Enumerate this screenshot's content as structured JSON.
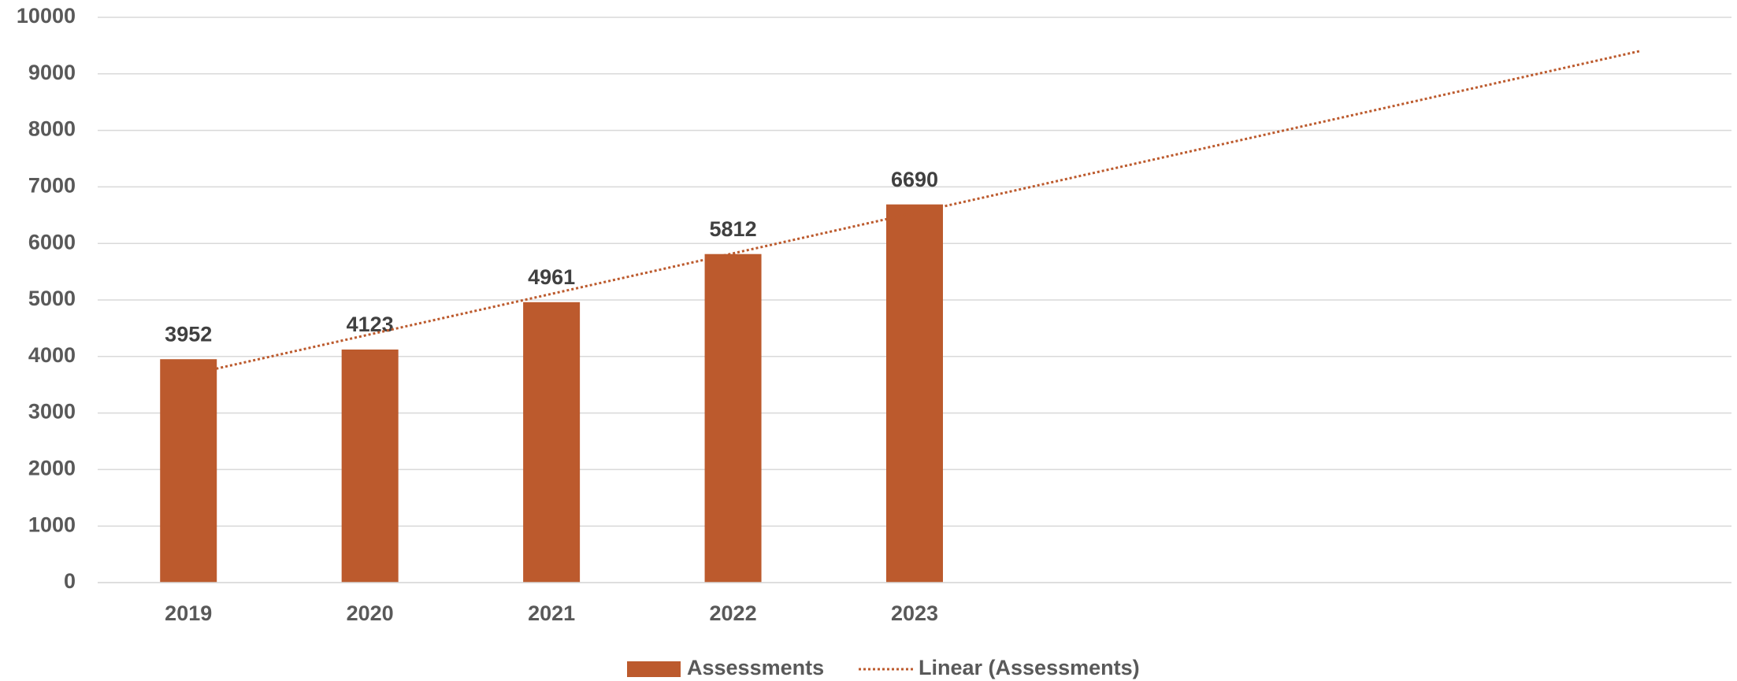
{
  "chart_data": {
    "type": "bar",
    "categories": [
      "2019",
      "2020",
      "2021",
      "2022",
      "2023",
      null,
      null,
      null,
      null
    ],
    "series": [
      {
        "name": "Assessments",
        "color": "#bc5a2d",
        "values": [
          3952,
          4123,
          4961,
          5812,
          6690,
          null,
          null,
          null,
          null
        ]
      }
    ],
    "trendline": {
      "name": "Linear (Assessments)",
      "type": "linear",
      "color": "#bc5a2d",
      "dotted": true
    },
    "ylim": [
      0,
      10000
    ],
    "yticks": [
      0,
      1000,
      2000,
      3000,
      4000,
      5000,
      6000,
      7000,
      8000,
      9000,
      10000
    ],
    "grid": true,
    "legend": "bottom",
    "data_labels": true
  }
}
